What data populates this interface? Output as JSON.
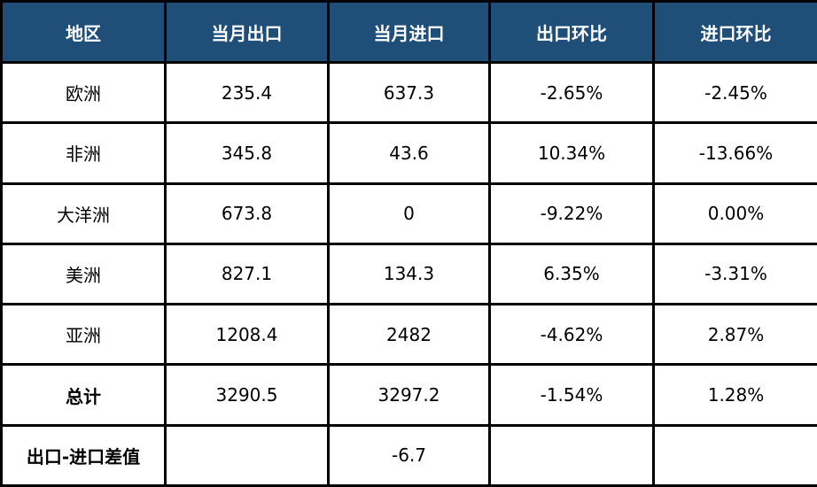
{
  "table": {
    "header": [
      "地区",
      "当月出口",
      "当月进口",
      "出口环比",
      "进口环比"
    ],
    "rows": [
      [
        "欧洲",
        "235.4",
        "637.3",
        "-2.65%",
        "-2.45%"
      ],
      [
        "非洲",
        "345.8",
        "43.6",
        "10.34%",
        "-13.66%"
      ],
      [
        "大洋洲",
        "673.8",
        "0",
        "-9.22%",
        "0.00%"
      ],
      [
        "美洲",
        "827.1",
        "134.3",
        "6.35%",
        "-3.31%"
      ],
      [
        "亚洲",
        "1208.4",
        "2482",
        "-4.62%",
        "2.87%"
      ],
      [
        "总计",
        "3290.5",
        "3297.2",
        "-1.54%",
        "1.28%"
      ],
      [
        "出口-进口差值",
        null,
        "-6.7",
        null,
        null
      ]
    ]
  }
}
